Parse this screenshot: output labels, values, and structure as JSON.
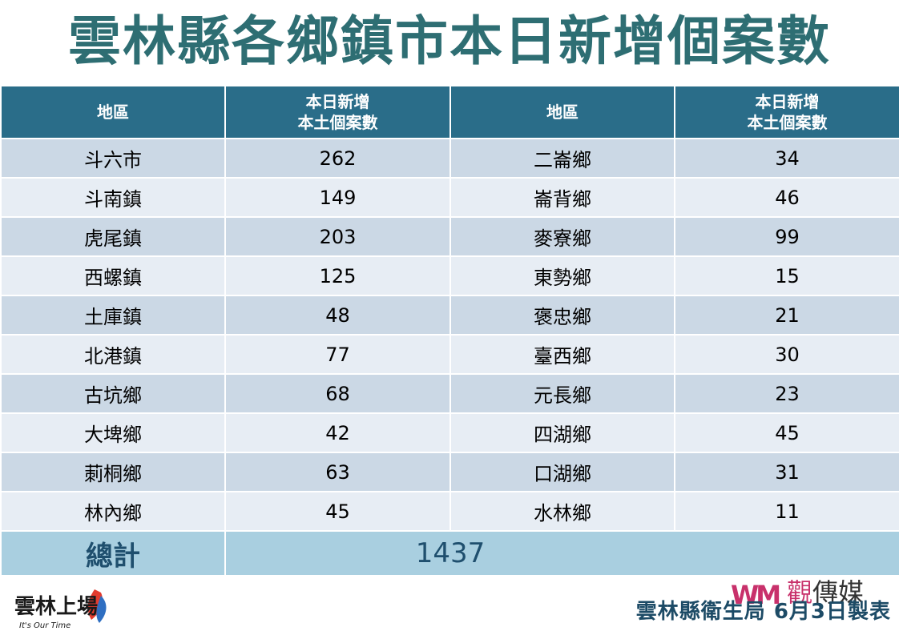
{
  "title": "雲林縣各鄉鎮市本日新增個案數",
  "table": {
    "headers": [
      {
        "line1": "地區",
        "line2": ""
      },
      {
        "line1": "本日新增",
        "line2": "本土個案數"
      },
      {
        "line1": "地區",
        "line2": ""
      },
      {
        "line1": "本日新增",
        "line2": "本土個案數"
      }
    ],
    "rows": [
      {
        "area_left": "斗六市",
        "count_left": "262",
        "area_right": "二崙鄉",
        "count_right": "34"
      },
      {
        "area_left": "斗南鎮",
        "count_left": "149",
        "area_right": "崙背鄉",
        "count_right": "46"
      },
      {
        "area_left": "虎尾鎮",
        "count_left": "203",
        "area_right": "麥寮鄉",
        "count_right": "99"
      },
      {
        "area_left": "西螺鎮",
        "count_left": "125",
        "area_right": "東勢鄉",
        "count_right": "15"
      },
      {
        "area_left": "土庫鎮",
        "count_left": "48",
        "area_right": "褒忠鄉",
        "count_right": "21"
      },
      {
        "area_left": "北港鎮",
        "count_left": "77",
        "area_right": "臺西鄉",
        "count_right": "30"
      },
      {
        "area_left": "古坑鄉",
        "count_left": "68",
        "area_right": "元長鄉",
        "count_right": "23"
      },
      {
        "area_left": "大埤鄉",
        "count_left": "42",
        "area_right": "四湖鄉",
        "count_right": "45"
      },
      {
        "area_left": "莿桐鄉",
        "count_left": "63",
        "area_right": "口湖鄉",
        "count_right": "31"
      },
      {
        "area_left": "林內鄉",
        "count_left": "45",
        "area_right": "水林鄉",
        "count_right": "11"
      }
    ],
    "total_label": "總計",
    "total_value": "1437"
  },
  "logo_left": {
    "text": "雲林上場",
    "tagline": "It's Our Time"
  },
  "media_logo": {
    "mark": "WM",
    "name_first": "觀",
    "name_rest": "傳媒"
  },
  "footer": {
    "source": "雲林縣衛生局 6月3日製表"
  },
  "colors": {
    "title": "#2e6e73",
    "header_bg": "#2a6d89",
    "row_odd": "#cbd8e5",
    "row_even": "#e7edf4",
    "total_bg": "#a9cfe0",
    "footer_text": "#1d4b66",
    "media_accent": "#c8316b"
  }
}
